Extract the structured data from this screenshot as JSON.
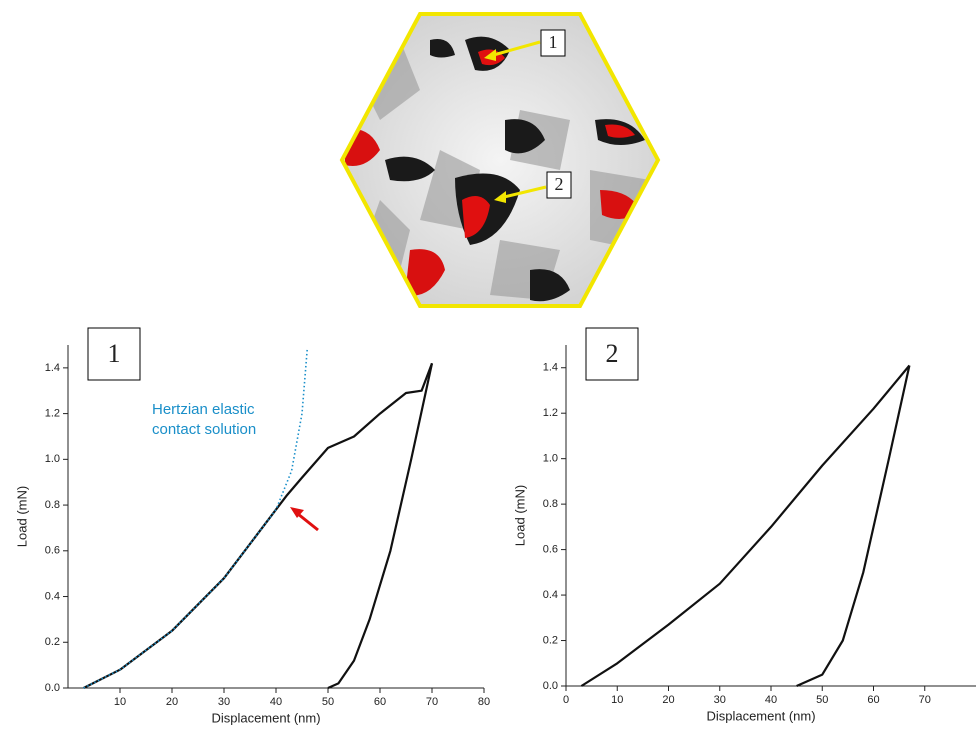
{
  "figure": {
    "markers": [
      "1",
      "2"
    ]
  },
  "chart_data": [
    {
      "type": "line",
      "panel_label": "1",
      "x_label": "Displacement (nm)",
      "y_label": "Load (mN)",
      "annotation": [
        "Hertzian elastic",
        "contact solution"
      ],
      "xlim": [
        0,
        80
      ],
      "xticks": [
        10,
        20,
        30,
        40,
        50,
        60,
        70,
        80
      ],
      "ylim": [
        0,
        1.5
      ],
      "yticks": [
        {
          "value": 0,
          "label": "0.0"
        },
        0.2,
        0.4,
        0.6,
        0.8,
        {
          "value": 1,
          "label": "1.0"
        },
        1.2,
        1.4
      ],
      "series": [
        {
          "color": "#111111",
          "style": "solid",
          "x": [
            3,
            10,
            20,
            30,
            40,
            42,
            45,
            50,
            55,
            60,
            65,
            68,
            70
          ],
          "values": [
            0,
            0.08,
            0.25,
            0.48,
            0.78,
            0.84,
            0.92,
            1.05,
            1.1,
            1.2,
            1.29,
            1.3,
            1.42
          ]
        },
        {
          "color": "#111111",
          "style": "solid",
          "x": [
            70,
            66,
            62,
            58,
            55,
            52,
            50
          ],
          "values": [
            1.42,
            1.0,
            0.6,
            0.3,
            0.12,
            0.02,
            0
          ]
        },
        {
          "color": "#1a8fc9",
          "style": "dotted",
          "x": [
            3,
            10,
            20,
            30,
            40,
            43,
            45,
            46
          ],
          "values": [
            0,
            0.08,
            0.25,
            0.48,
            0.78,
            0.95,
            1.2,
            1.48
          ]
        }
      ]
    },
    {
      "type": "line",
      "panel_label": "2",
      "x_label": "Displacement (nm)",
      "y_label": "Load (mN)",
      "xlim": [
        0,
        80
      ],
      "xticks": [
        0,
        10,
        20,
        30,
        40,
        50,
        60,
        70
      ],
      "ylim": [
        0,
        1.5
      ],
      "yticks": [
        {
          "value": 0,
          "label": "0.0"
        },
        0.2,
        0.4,
        0.6,
        0.8,
        {
          "value": 1,
          "label": "1.0"
        },
        1.2,
        1.4
      ],
      "series": [
        {
          "color": "#111111",
          "style": "solid",
          "x": [
            3,
            10,
            20,
            30,
            40,
            50,
            60,
            67
          ],
          "values": [
            0,
            0.1,
            0.27,
            0.45,
            0.7,
            0.97,
            1.22,
            1.41
          ]
        },
        {
          "color": "#111111",
          "style": "solid",
          "x": [
            67,
            63,
            58,
            54,
            50,
            45
          ],
          "values": [
            1.41,
            1.0,
            0.5,
            0.2,
            0.05,
            0
          ]
        }
      ]
    }
  ]
}
